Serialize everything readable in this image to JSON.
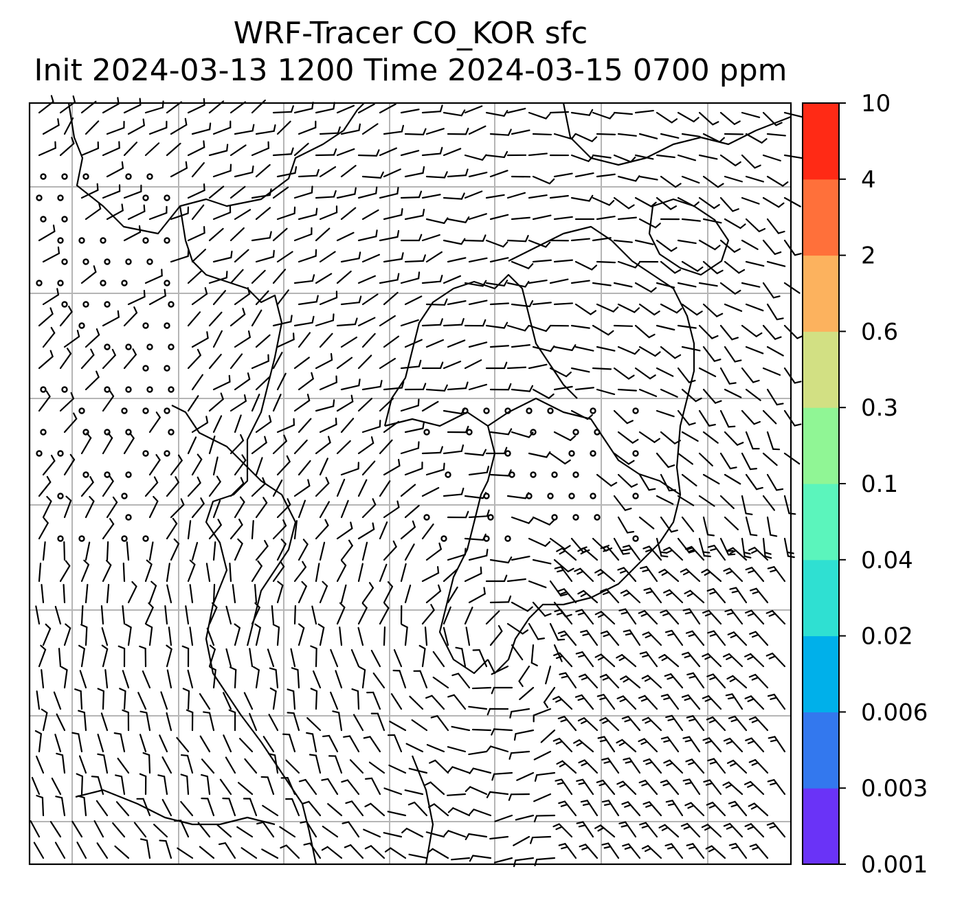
{
  "title": {
    "line1": "WRF-Tracer CO_KOR sfc",
    "line2": "Init 2024-03-13 1200 Time 2024-03-15 0700 ppm"
  },
  "colorbar": {
    "tick_labels": [
      "0.001",
      "0.003",
      "0.006",
      "0.02",
      "0.04",
      "0.1",
      "0.3",
      "0.6",
      "2",
      "4",
      "10"
    ],
    "colors": [
      "#6a33f7",
      "#3378ee",
      "#00b0ea",
      "#2fe0d2",
      "#5bf5bc",
      "#90f695",
      "#d2e083",
      "#fcb25e",
      "#ff703a",
      "#ff2a15"
    ]
  },
  "map": {
    "grid": true,
    "barbs": "surface wind barbs",
    "coastline_color": "#000000",
    "gridline_color": "#b5b5b5"
  }
}
